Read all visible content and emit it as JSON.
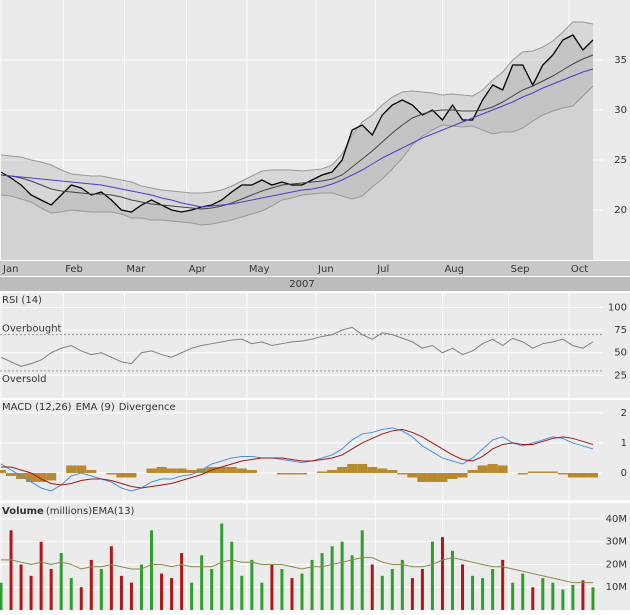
{
  "chart_data": [
    {
      "type": "price",
      "xlim": [
        0,
        60
      ],
      "xticks": [
        {
          "value": 0,
          "label": "Jan"
        },
        {
          "value": 6.2,
          "label": "Feb"
        },
        {
          "value": 12.3,
          "label": "Mar"
        },
        {
          "value": 18.5,
          "label": "Apr"
        },
        {
          "value": 24.5,
          "label": "May"
        },
        {
          "value": 31.4,
          "label": "Jun"
        },
        {
          "value": 37.3,
          "label": "Jul"
        },
        {
          "value": 44,
          "label": "Aug"
        },
        {
          "value": 50.6,
          "label": "Sep"
        },
        {
          "value": 56.6,
          "label": "Oct"
        }
      ],
      "year_label": "2007",
      "ylim": [
        15,
        41
      ],
      "yticks": [
        20,
        25,
        30,
        35
      ],
      "grid": true,
      "series": [
        {
          "role": "band-upper",
          "color": "#999999",
          "values": [
            25.5,
            25.4,
            25.3,
            25,
            24.8,
            24.5,
            24,
            23.6,
            23.5,
            23.4,
            23.4,
            23.2,
            23,
            22.8,
            22.4,
            22.2,
            22,
            21.9,
            21.8,
            21.7,
            21.7,
            21.8,
            22,
            22.4,
            22.9,
            23.4,
            23.9,
            24,
            24,
            24,
            23.9,
            24,
            24.1,
            24.5,
            25.6,
            27.5,
            28.8,
            29.5,
            30.5,
            31.3,
            31.8,
            31.9,
            31.8,
            31.7,
            31.5,
            31.6,
            31.5,
            31.4,
            32,
            33,
            33.8,
            35,
            35.8,
            35.9,
            36.3,
            36.9,
            37.8,
            38.8,
            38.8,
            38.6
          ]
        },
        {
          "role": "band-lower",
          "color": "#999999",
          "values": [
            21.5,
            21.4,
            21.1,
            20.8,
            20.2,
            19.7,
            19.8,
            20,
            19.9,
            19.8,
            19.8,
            19.8,
            19.6,
            19.2,
            19.2,
            19,
            19,
            18.9,
            18.8,
            18.7,
            18.5,
            18.6,
            18.8,
            19,
            19.3,
            19.6,
            19.9,
            20.4,
            21,
            21.2,
            21.5,
            21.6,
            21.7,
            21.7,
            21.4,
            21.1,
            21.4,
            22.3,
            23.1,
            24.1,
            25.2,
            26.5,
            27.4,
            28,
            28.5,
            28.4,
            28.3,
            28.4,
            28,
            27.6,
            27.8,
            27.8,
            28.2,
            28.9,
            29.5,
            29.9,
            30.2,
            30.4,
            31.4,
            32.4
          ]
        },
        {
          "role": "price",
          "color": "#000000",
          "values": [
            23.8,
            23.2,
            22.5,
            21.5,
            21,
            20.5,
            21.5,
            22.5,
            22.2,
            21.5,
            21.8,
            21,
            20,
            19.8,
            20.5,
            21,
            20.5,
            20,
            19.8,
            20,
            20.3,
            20.5,
            21,
            21.8,
            22.5,
            22.5,
            23,
            22.5,
            22.8,
            22.5,
            22.5,
            23,
            23.5,
            23.8,
            25,
            28,
            28.5,
            27.5,
            29.5,
            30.5,
            31,
            30.5,
            29.5,
            30,
            29,
            30.5,
            29,
            29,
            31,
            32.5,
            32,
            34.5,
            34.5,
            32.5,
            34.5,
            35.5,
            37,
            37.5,
            36,
            37
          ]
        },
        {
          "role": "line",
          "color": "#444444",
          "values": [
            23.5,
            23.4,
            23.2,
            22.9,
            22.5,
            22.1,
            21.9,
            21.8,
            21.7,
            21.6,
            21.6,
            21.5,
            21.3,
            21,
            20.8,
            20.6,
            20.5,
            20.4,
            20.3,
            20.2,
            20.1,
            20.2,
            20.4,
            20.7,
            21.1,
            21.5,
            21.9,
            22.2,
            22.5,
            22.6,
            22.7,
            22.8,
            22.9,
            23.1,
            23.5,
            24.3,
            25.1,
            25.9,
            26.8,
            27.7,
            28.5,
            29.2,
            29.6,
            29.9,
            30,
            30,
            29.9,
            29.9,
            30,
            30.3,
            30.8,
            31.4,
            32,
            32.4,
            32.9,
            33.4,
            34,
            34.6,
            35.1,
            35.5
          ]
        },
        {
          "role": "line",
          "color": "#4a3fc8",
          "values": [
            23.5,
            23.4,
            23.3,
            23.2,
            23.1,
            23,
            22.9,
            22.8,
            22.7,
            22.6,
            22.5,
            22.3,
            22.1,
            21.9,
            21.7,
            21.5,
            21.2,
            21,
            20.7,
            20.5,
            20.3,
            20.4,
            20.5,
            20.6,
            20.8,
            21,
            21.2,
            21.4,
            21.6,
            21.8,
            22,
            22.1,
            22.3,
            22.6,
            23,
            23.5,
            24,
            24.6,
            25.2,
            25.7,
            26.2,
            26.7,
            27.2,
            27.6,
            28,
            28.4,
            28.8,
            29.2,
            29.6,
            30,
            30.4,
            30.8,
            31.3,
            31.7,
            32.2,
            32.6,
            33,
            33.4,
            33.8,
            34.1
          ]
        }
      ]
    },
    {
      "type": "rsi",
      "title": "RSI (14)",
      "ylim": [
        0,
        116
      ],
      "yticks": [
        25,
        50,
        75,
        100
      ],
      "levels": [
        {
          "value": 70,
          "label": "Overbought"
        },
        {
          "value": 30,
          "label": "Oversold"
        }
      ],
      "series": [
        {
          "color": "#808080",
          "values": [
            45,
            40,
            35,
            38,
            42,
            50,
            55,
            58,
            52,
            48,
            50,
            45,
            40,
            38,
            50,
            52,
            48,
            45,
            50,
            55,
            58,
            60,
            62,
            64,
            65,
            60,
            62,
            58,
            60,
            62,
            63,
            65,
            68,
            70,
            75,
            78,
            70,
            65,
            72,
            70,
            66,
            62,
            55,
            58,
            50,
            55,
            48,
            52,
            60,
            65,
            58,
            66,
            62,
            55,
            60,
            62,
            65,
            58,
            55,
            62
          ]
        }
      ]
    },
    {
      "type": "macd",
      "ylim": [
        -0.9,
        2.43
      ],
      "yticks": [
        0,
        1,
        2
      ],
      "series": [
        {
          "name": "MACD (12,26)",
          "color": "#4a8fe0",
          "kind": "line",
          "values": [
            0.3,
            0.1,
            -0.1,
            -0.3,
            -0.5,
            -0.6,
            -0.4,
            -0.1,
            0,
            -0.1,
            -0.2,
            -0.3,
            -0.5,
            -0.6,
            -0.5,
            -0.3,
            -0.2,
            -0.2,
            -0.1,
            -0.05,
            0.1,
            0.3,
            0.4,
            0.5,
            0.55,
            0.55,
            0.5,
            0.5,
            0.45,
            0.4,
            0.35,
            0.4,
            0.5,
            0.6,
            0.8,
            1.1,
            1.3,
            1.35,
            1.45,
            1.5,
            1.4,
            1.2,
            0.9,
            0.7,
            0.5,
            0.4,
            0.3,
            0.5,
            0.8,
            1.1,
            1.2,
            1.0,
            0.9,
            1.0,
            1.1,
            1.2,
            1.15,
            1.0,
            0.9,
            0.8
          ]
        },
        {
          "name": "EMA (9)",
          "color": "#a01818",
          "kind": "line",
          "values": [
            0.2,
            0.2,
            0.1,
            0,
            -0.2,
            -0.35,
            -0.4,
            -0.35,
            -0.25,
            -0.2,
            -0.2,
            -0.25,
            -0.35,
            -0.45,
            -0.5,
            -0.45,
            -0.4,
            -0.35,
            -0.25,
            -0.15,
            -0.05,
            0.1,
            0.2,
            0.3,
            0.4,
            0.45,
            0.5,
            0.5,
            0.5,
            0.45,
            0.4,
            0.4,
            0.45,
            0.5,
            0.6,
            0.8,
            1.0,
            1.15,
            1.3,
            1.4,
            1.45,
            1.35,
            1.2,
            1.0,
            0.8,
            0.6,
            0.45,
            0.4,
            0.55,
            0.8,
            0.95,
            1.0,
            0.95,
            0.95,
            1.05,
            1.15,
            1.2,
            1.15,
            1.05,
            0.95
          ]
        },
        {
          "name": "Divergence",
          "color": "#b8892e",
          "kind": "bar",
          "values": [
            0.1,
            -0.1,
            -0.2,
            -0.3,
            -0.3,
            -0.25,
            0,
            0.25,
            0.25,
            0.1,
            0,
            -0.05,
            -0.15,
            -0.15,
            0,
            0.15,
            0.2,
            0.15,
            0.15,
            0.1,
            0.15,
            0.2,
            0.2,
            0.2,
            0.15,
            0.1,
            0,
            0,
            -0.05,
            -0.05,
            -0.05,
            0,
            0.05,
            0.1,
            0.2,
            0.3,
            0.3,
            0.2,
            0.15,
            0.1,
            -0.05,
            -0.15,
            -0.3,
            -0.3,
            -0.3,
            -0.2,
            -0.15,
            0.1,
            0.25,
            0.3,
            0.25,
            0,
            -0.05,
            0.05,
            0.05,
            0.05,
            -0.05,
            -0.15,
            -0.15,
            -0.15
          ]
        }
      ]
    },
    {
      "type": "volume",
      "subtitle": "(millions)",
      "ylim": [
        0,
        47
      ],
      "yticks": [
        {
          "value": 10,
          "label": "10M"
        },
        {
          "value": 20,
          "label": "20M"
        },
        {
          "value": 30,
          "label": "30M"
        },
        {
          "value": 40,
          "label": "40M"
        }
      ],
      "up_color": "#2e9e2e",
      "down_color": "#b01818",
      "series": [
        {
          "name": "Volume",
          "kind": "bar",
          "values": [
            12,
            35,
            20,
            15,
            30,
            18,
            25,
            14,
            10,
            22,
            18,
            28,
            15,
            12,
            20,
            35,
            16,
            14,
            25,
            12,
            24,
            18,
            38,
            30,
            15,
            22,
            12,
            20,
            18,
            14,
            16,
            22,
            25,
            28,
            30,
            24,
            35,
            20,
            15,
            18,
            22,
            14,
            18,
            30,
            32,
            26,
            20,
            15,
            14,
            18,
            22,
            12,
            16,
            10,
            14,
            12,
            9,
            11,
            13,
            10
          ]
        },
        {
          "name": "EMA(13)",
          "color": "#8a8a4a",
          "kind": "line",
          "values": [
            22,
            22,
            21,
            20,
            21,
            20,
            21,
            20,
            18,
            19,
            19,
            20,
            19,
            18,
            18,
            20,
            20,
            19,
            20,
            19,
            19,
            19,
            21,
            22,
            21,
            21,
            20,
            20,
            20,
            19,
            18,
            19,
            19,
            20,
            21,
            22,
            23,
            23,
            21,
            20,
            20,
            19,
            19,
            20,
            22,
            23,
            22,
            21,
            20,
            19,
            19,
            18,
            17,
            16,
            15,
            14,
            13,
            12,
            12,
            12
          ]
        }
      ]
    }
  ]
}
